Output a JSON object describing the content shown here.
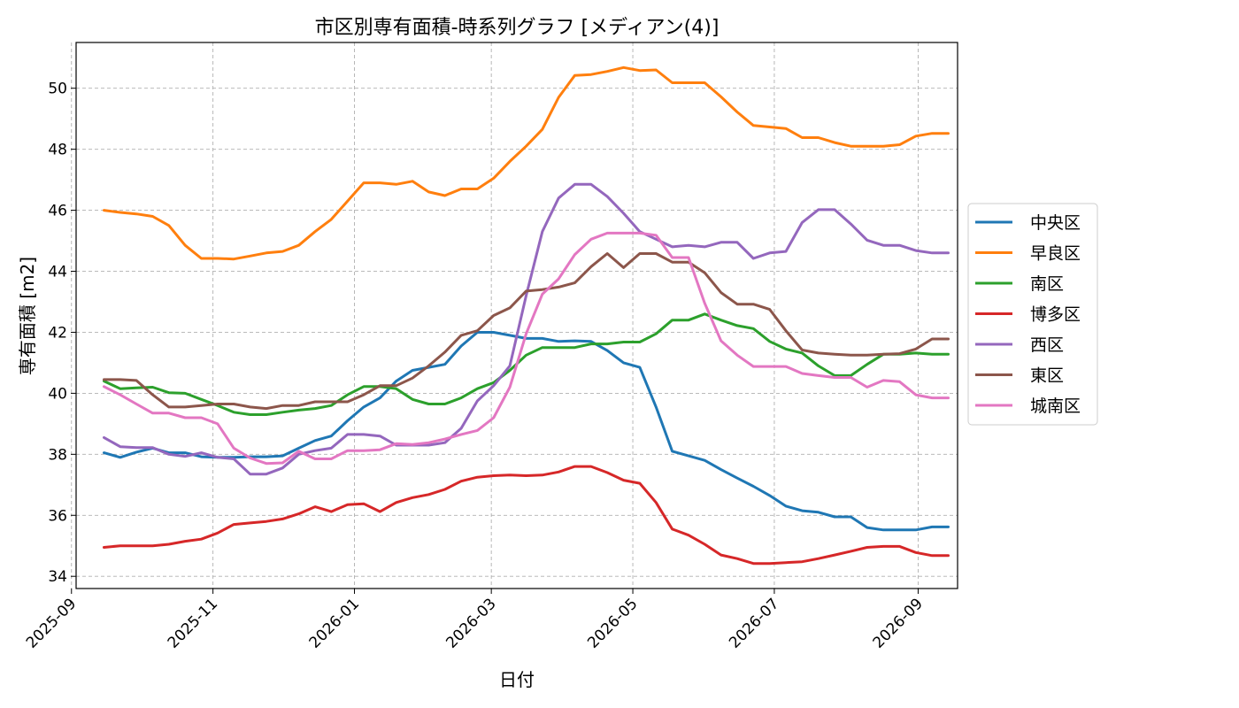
{
  "chart_data": {
    "type": "line",
    "title": "市区別専有面積-時系列グラフ [メディアン(4)]",
    "xlabel": "日付",
    "ylabel": "専有面積 [m2]",
    "ylim": [
      33.6,
      51.5
    ],
    "xlim": [
      "2025-09-03",
      "2026-09-18"
    ],
    "yticks": [
      34,
      36,
      38,
      40,
      42,
      44,
      46,
      48,
      50
    ],
    "xticks": [
      "2025-09",
      "2025-11",
      "2026-01",
      "2026-03",
      "2026-05",
      "2026-07",
      "2026-09"
    ],
    "grid": true,
    "legend_position": "right",
    "x": [
      "2025-09-15",
      "2025-09-22",
      "2025-09-29",
      "2025-10-06",
      "2025-10-13",
      "2025-10-20",
      "2025-10-27",
      "2025-11-03",
      "2025-11-10",
      "2025-11-17",
      "2025-11-24",
      "2025-12-01",
      "2025-12-08",
      "2025-12-15",
      "2025-12-22",
      "2025-12-29",
      "2026-01-05",
      "2026-01-12",
      "2026-01-19",
      "2026-01-26",
      "2026-02-02",
      "2026-02-09",
      "2026-02-16",
      "2026-02-23",
      "2026-03-02",
      "2026-03-09",
      "2026-03-16",
      "2026-03-23",
      "2026-03-30",
      "2026-04-06",
      "2026-04-13",
      "2026-04-20",
      "2026-04-27",
      "2026-05-04",
      "2026-05-11",
      "2026-05-18",
      "2026-05-25",
      "2026-06-01",
      "2026-06-08",
      "2026-06-15",
      "2026-06-22",
      "2026-06-29",
      "2026-07-06",
      "2026-07-13",
      "2026-07-20",
      "2026-07-27",
      "2026-08-03",
      "2026-08-10",
      "2026-08-17",
      "2026-08-24",
      "2026-08-31",
      "2026-09-07",
      "2026-09-14"
    ],
    "series": [
      {
        "name": "中央区",
        "color": "#1f77b4",
        "values": [
          38.05,
          37.9,
          38.07,
          38.2,
          38.05,
          38.05,
          37.92,
          37.9,
          37.9,
          37.92,
          37.92,
          37.95,
          38.2,
          38.45,
          38.6,
          39.1,
          39.55,
          39.85,
          40.4,
          40.75,
          40.85,
          40.95,
          41.55,
          42.0,
          42.0,
          41.9,
          41.8,
          41.8,
          41.7,
          41.72,
          41.7,
          41.4,
          41.0,
          40.85,
          39.55,
          38.1,
          37.95,
          37.8,
          37.5,
          37.22,
          36.95,
          36.65,
          36.3,
          36.15,
          36.1,
          35.95,
          35.95,
          35.6,
          35.52,
          35.52,
          35.52,
          35.62,
          35.62
        ]
      },
      {
        "name": "早良区",
        "color": "#ff7f0e",
        "values": [
          46.0,
          45.93,
          45.88,
          45.8,
          45.5,
          44.85,
          44.42,
          44.42,
          44.4,
          44.5,
          44.6,
          44.65,
          44.85,
          45.3,
          45.7,
          46.3,
          46.9,
          46.9,
          46.85,
          46.95,
          46.6,
          46.48,
          46.7,
          46.7,
          47.05,
          47.6,
          48.1,
          48.65,
          49.7,
          50.42,
          50.45,
          50.55,
          50.68,
          50.58,
          50.6,
          50.18,
          50.18,
          50.18,
          49.72,
          49.22,
          48.78,
          48.73,
          48.68,
          48.38,
          48.38,
          48.22,
          48.1,
          48.1,
          48.1,
          48.15,
          48.43,
          48.52,
          48.52
        ]
      },
      {
        "name": "南区",
        "color": "#2ca02c",
        "values": [
          40.4,
          40.15,
          40.18,
          40.2,
          40.02,
          40.0,
          39.8,
          39.6,
          39.38,
          39.3,
          39.3,
          39.38,
          39.45,
          39.5,
          39.6,
          39.95,
          40.22,
          40.22,
          40.15,
          39.8,
          39.65,
          39.65,
          39.85,
          40.15,
          40.35,
          40.75,
          41.25,
          41.5,
          41.5,
          41.5,
          41.62,
          41.62,
          41.68,
          41.68,
          41.95,
          42.4,
          42.4,
          42.6,
          42.4,
          42.22,
          42.12,
          41.7,
          41.45,
          41.32,
          40.9,
          40.58,
          40.58,
          40.95,
          41.28,
          41.28,
          41.32,
          41.28,
          41.28
        ]
      },
      {
        "name": "博多区",
        "color": "#d62728",
        "values": [
          34.95,
          35.0,
          35.0,
          35.0,
          35.05,
          35.15,
          35.22,
          35.42,
          35.7,
          35.75,
          35.8,
          35.88,
          36.05,
          36.28,
          36.12,
          36.35,
          36.38,
          36.12,
          36.42,
          36.58,
          36.68,
          36.85,
          37.12,
          37.25,
          37.3,
          37.32,
          37.3,
          37.32,
          37.42,
          37.6,
          37.6,
          37.4,
          37.15,
          37.05,
          36.42,
          35.55,
          35.35,
          35.05,
          34.7,
          34.58,
          34.42,
          34.42,
          34.45,
          34.48,
          34.58,
          34.7,
          34.82,
          34.95,
          34.98,
          34.98,
          34.78,
          34.68,
          34.68
        ]
      },
      {
        "name": "西区",
        "color": "#9467bd",
        "values": [
          38.55,
          38.25,
          38.22,
          38.22,
          38.0,
          37.93,
          38.05,
          37.9,
          37.85,
          37.35,
          37.35,
          37.55,
          38.0,
          38.12,
          38.2,
          38.65,
          38.65,
          38.6,
          38.3,
          38.3,
          38.3,
          38.38,
          38.85,
          39.75,
          40.25,
          40.9,
          43.2,
          45.3,
          46.4,
          46.85,
          46.85,
          46.45,
          45.9,
          45.3,
          45.05,
          44.8,
          44.85,
          44.8,
          44.95,
          44.95,
          44.42,
          44.6,
          44.65,
          45.6,
          46.02,
          46.02,
          45.55,
          45.02,
          44.85,
          44.85,
          44.68,
          44.6,
          44.6
        ]
      },
      {
        "name": "東区",
        "color": "#8c564b",
        "values": [
          40.45,
          40.45,
          40.42,
          39.95,
          39.55,
          39.55,
          39.6,
          39.65,
          39.65,
          39.55,
          39.5,
          39.6,
          39.6,
          39.72,
          39.72,
          39.72,
          39.95,
          40.25,
          40.25,
          40.5,
          40.9,
          41.35,
          41.9,
          42.05,
          42.55,
          42.8,
          43.35,
          43.4,
          43.48,
          43.62,
          44.15,
          44.58,
          44.12,
          44.58,
          44.58,
          44.3,
          44.3,
          43.95,
          43.3,
          42.92,
          42.92,
          42.75,
          42.05,
          41.42,
          41.32,
          41.28,
          41.25,
          41.25,
          41.28,
          41.3,
          41.45,
          41.78,
          41.78
        ]
      },
      {
        "name": "城南区",
        "color": "#e377c2",
        "values": [
          40.22,
          39.95,
          39.65,
          39.35,
          39.35,
          39.2,
          39.2,
          39.0,
          38.2,
          37.88,
          37.7,
          37.72,
          38.1,
          37.85,
          37.85,
          38.12,
          38.12,
          38.15,
          38.35,
          38.32,
          38.38,
          38.5,
          38.65,
          38.78,
          39.2,
          40.2,
          41.95,
          43.25,
          43.75,
          44.55,
          45.05,
          45.25,
          45.25,
          45.25,
          45.18,
          44.45,
          44.45,
          42.95,
          41.72,
          41.25,
          40.88,
          40.88,
          40.88,
          40.65,
          40.58,
          40.52,
          40.52,
          40.2,
          40.42,
          40.38,
          39.95,
          39.85,
          39.85
        ]
      }
    ]
  }
}
